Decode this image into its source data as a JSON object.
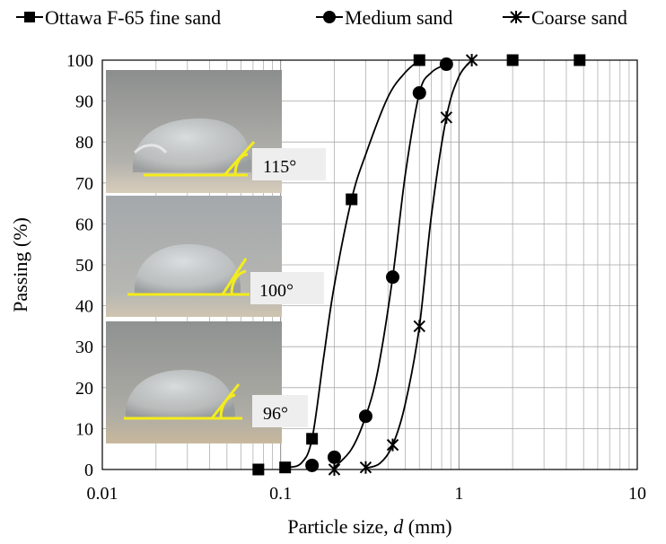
{
  "chart_data": {
    "type": "line",
    "title": "",
    "xlabel_prefix": "Particle size, ",
    "xlabel_symbol": "d",
    "xlabel_suffix": " (mm)",
    "ylabel": "Passing (%)",
    "xscale": "log",
    "xlim": [
      0.01,
      10
    ],
    "ylim": [
      0,
      100
    ],
    "x_ticks": [
      0.01,
      0.1,
      1,
      10
    ],
    "x_tick_labels": [
      "0.01",
      "0.1",
      "1",
      "10"
    ],
    "y_ticks": [
      0,
      10,
      20,
      30,
      40,
      50,
      60,
      70,
      80,
      90,
      100
    ],
    "y_tick_labels": [
      "0",
      "10",
      "20",
      "30",
      "40",
      "50",
      "60",
      "70",
      "80",
      "90",
      "100"
    ],
    "grid": true,
    "legend_position": "top",
    "series": [
      {
        "name": "Ottawa F-65 fine sand",
        "marker": "square",
        "points": [
          [
            0.075,
            0
          ],
          [
            0.106,
            0.5
          ],
          [
            0.15,
            7.5
          ],
          [
            0.25,
            66
          ],
          [
            0.6,
            100
          ],
          [
            2.0,
            100
          ],
          [
            4.75,
            100
          ]
        ],
        "curve": [
          [
            0.106,
            0.5
          ],
          [
            0.13,
            1.5
          ],
          [
            0.15,
            7.5
          ],
          [
            0.175,
            28
          ],
          [
            0.2,
            45
          ],
          [
            0.25,
            66
          ],
          [
            0.3,
            77
          ],
          [
            0.4,
            91
          ],
          [
            0.5,
            97
          ],
          [
            0.6,
            100
          ]
        ]
      },
      {
        "name": "Medium sand",
        "marker": "circle",
        "points": [
          [
            0.15,
            1
          ],
          [
            0.2,
            3
          ],
          [
            0.3,
            13
          ],
          [
            0.425,
            47
          ],
          [
            0.6,
            92
          ],
          [
            0.85,
            99
          ]
        ],
        "curve": [
          [
            0.2,
            0.5
          ],
          [
            0.25,
            5
          ],
          [
            0.3,
            13
          ],
          [
            0.35,
            24
          ],
          [
            0.425,
            47
          ],
          [
            0.5,
            72
          ],
          [
            0.6,
            92
          ],
          [
            0.7,
            97
          ],
          [
            0.85,
            99
          ]
        ]
      },
      {
        "name": "Coarse sand",
        "marker": "asterisk",
        "points": [
          [
            0.2,
            0
          ],
          [
            0.3,
            0.5
          ],
          [
            0.425,
            6
          ],
          [
            0.6,
            35
          ],
          [
            0.85,
            86
          ],
          [
            1.18,
            100
          ]
        ],
        "curve": [
          [
            0.3,
            0.3
          ],
          [
            0.36,
            1.5
          ],
          [
            0.425,
            6
          ],
          [
            0.5,
            16
          ],
          [
            0.6,
            35
          ],
          [
            0.7,
            62
          ],
          [
            0.85,
            86
          ],
          [
            1.0,
            96
          ],
          [
            1.18,
            100
          ]
        ]
      }
    ],
    "inset_photos": [
      {
        "angle_label": "115°"
      },
      {
        "angle_label": "100°"
      },
      {
        "angle_label": "96°"
      }
    ]
  }
}
